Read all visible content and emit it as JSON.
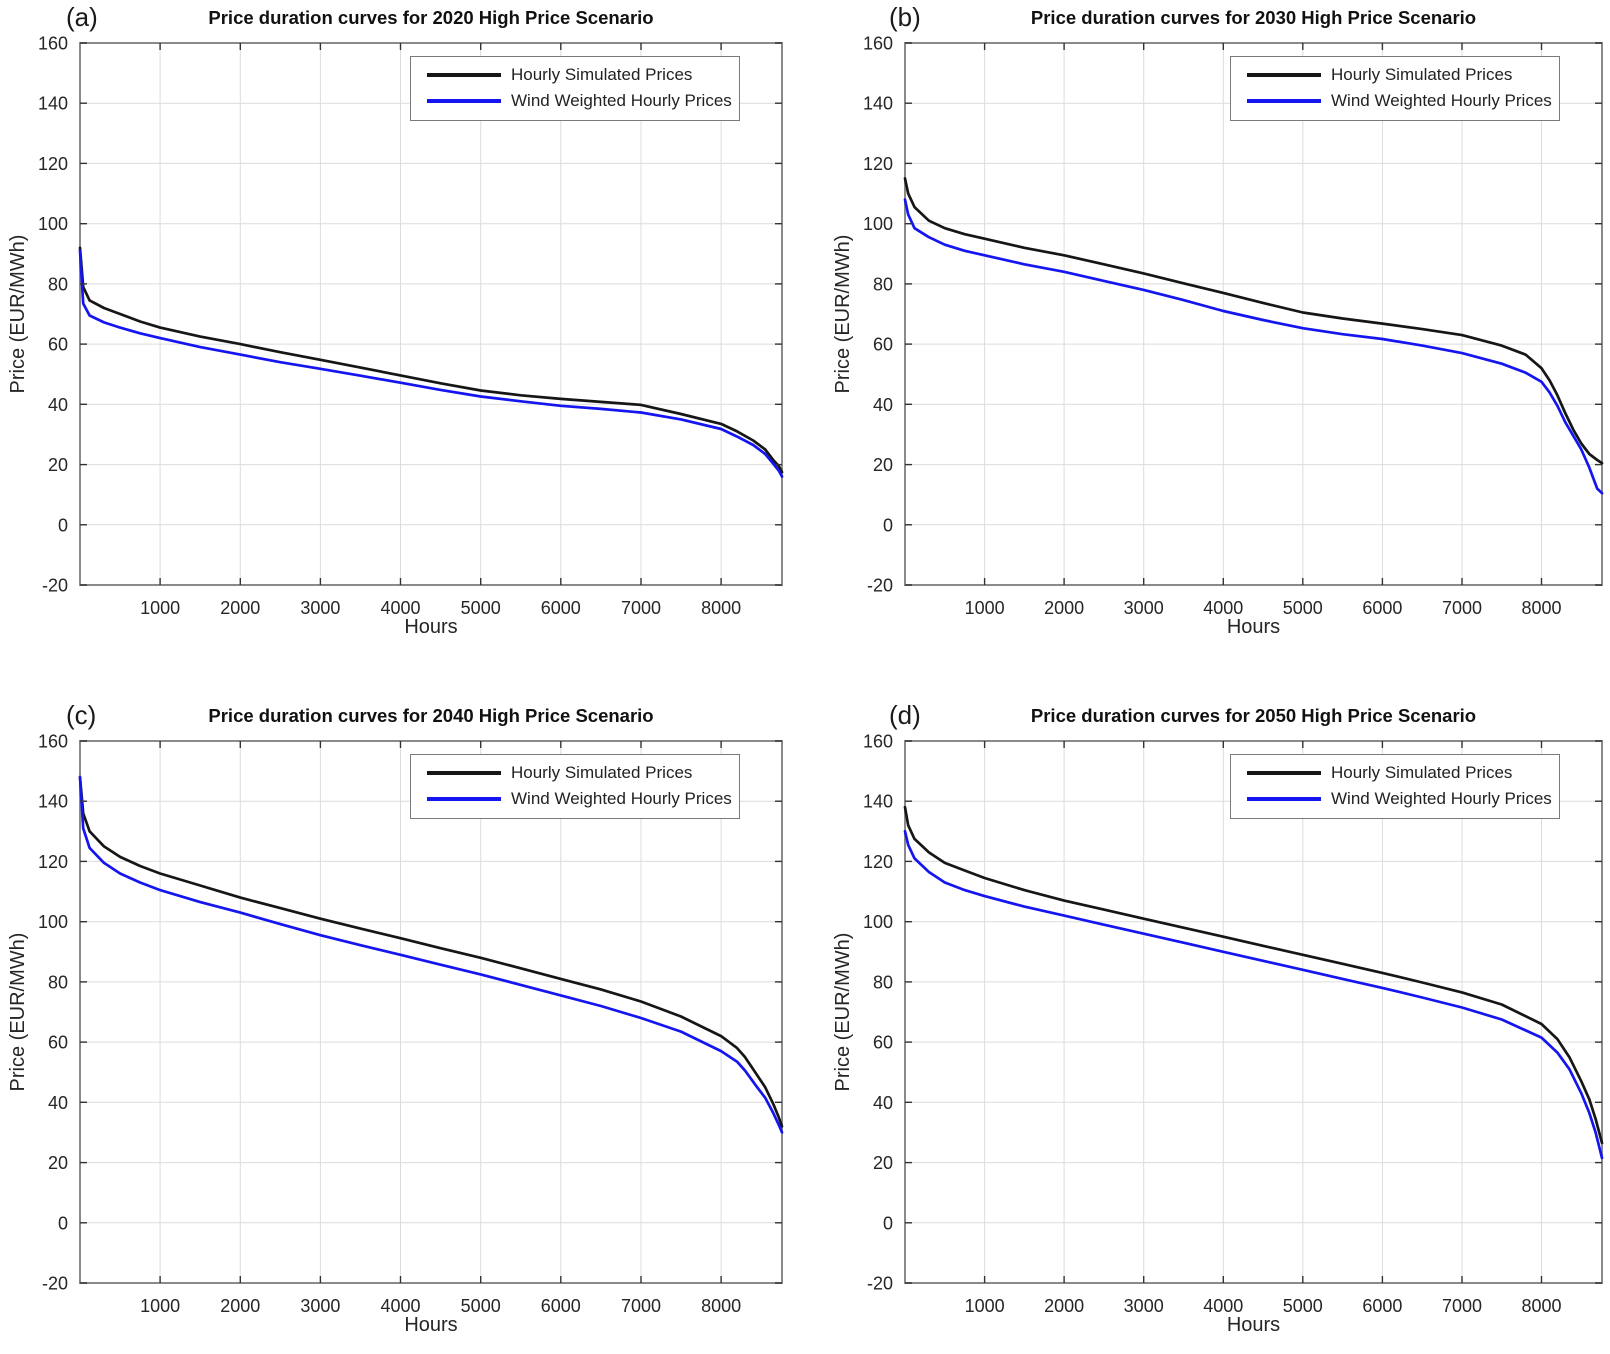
{
  "figure": {
    "background": "#ffffff",
    "axis_color": "#8a8a8a",
    "grid_color": "#dcdcdc",
    "legend": {
      "entries": [
        {
          "label": "Hourly Simulated Prices",
          "color": "#161616"
        },
        {
          "label": "Wind Weighted Hourly Prices",
          "color": "#1515f0"
        }
      ]
    }
  },
  "chart_data": [
    {
      "type": "line",
      "panel_label": "(a)",
      "title": "Price duration curves for 2020 High Price Scenario",
      "xlabel": "Hours",
      "ylabel": "Price (EUR/MWh)",
      "xlim": [
        0,
        8760
      ],
      "ylim": [
        -20,
        160
      ],
      "xticks": [
        1000,
        2000,
        3000,
        4000,
        5000,
        6000,
        7000,
        8000
      ],
      "yticks": [
        -20,
        0,
        20,
        40,
        60,
        80,
        100,
        120,
        140,
        160
      ],
      "grid": true,
      "legend_position": "top-right",
      "series": [
        {
          "name": "Hourly Simulated Prices",
          "color": "#161616",
          "x": [
            0,
            40,
            120,
            300,
            500,
            750,
            1000,
            1500,
            2000,
            2500,
            3000,
            3500,
            4000,
            4500,
            5000,
            5500,
            6000,
            6500,
            7000,
            7500,
            8000,
            8200,
            8400,
            8550,
            8650,
            8720,
            8760
          ],
          "y": [
            92,
            79,
            74.5,
            72,
            70,
            67.5,
            65.5,
            62.5,
            60,
            57.3,
            54.8,
            52.2,
            49.6,
            47,
            44.6,
            43,
            41.8,
            40.8,
            39.8,
            36.8,
            33.5,
            31,
            28,
            25,
            21.5,
            19.5,
            17.5
          ]
        },
        {
          "name": "Wind Weighted Hourly Prices",
          "color": "#1515f0",
          "x": [
            0,
            40,
            120,
            300,
            500,
            750,
            1000,
            1500,
            2000,
            2500,
            3000,
            3500,
            4000,
            4500,
            5000,
            5500,
            6000,
            6500,
            7000,
            7500,
            8000,
            8200,
            8400,
            8550,
            8650,
            8720,
            8760
          ],
          "y": [
            91,
            73.5,
            69.5,
            67.2,
            65.5,
            63.6,
            62,
            59,
            56.5,
            54,
            51.8,
            49.5,
            47.2,
            44.8,
            42.6,
            41,
            39.5,
            38.5,
            37.3,
            35,
            31.8,
            29.3,
            26.5,
            23.5,
            20.3,
            18,
            16
          ]
        }
      ]
    },
    {
      "type": "line",
      "panel_label": "(b)",
      "title": "Price duration curves for 2030 High Price Scenario",
      "xlabel": "Hours",
      "ylabel": "Price (EUR/MWh)",
      "xlim": [
        0,
        8760
      ],
      "ylim": [
        -20,
        160
      ],
      "xticks": [
        1000,
        2000,
        3000,
        4000,
        5000,
        6000,
        7000,
        8000
      ],
      "yticks": [
        -20,
        0,
        20,
        40,
        60,
        80,
        100,
        120,
        140,
        160
      ],
      "grid": true,
      "legend_position": "top-right",
      "series": [
        {
          "name": "Hourly Simulated Prices",
          "color": "#161616",
          "x": [
            0,
            40,
            120,
            300,
            500,
            750,
            1000,
            1500,
            2000,
            2500,
            3000,
            3500,
            4000,
            4500,
            5000,
            5500,
            6000,
            6500,
            7000,
            7500,
            7800,
            8000,
            8100,
            8200,
            8300,
            8400,
            8500,
            8600,
            8700,
            8760
          ],
          "y": [
            115,
            110,
            105.5,
            101,
            98.5,
            96.5,
            95,
            92,
            89.5,
            86.5,
            83.5,
            80.2,
            77,
            73.7,
            70.5,
            68.5,
            66.8,
            65,
            63,
            59.5,
            56.5,
            52,
            48,
            43,
            37,
            31.5,
            27,
            23.5,
            21.5,
            20.5
          ]
        },
        {
          "name": "Wind Weighted Hourly Prices",
          "color": "#1515f0",
          "x": [
            0,
            40,
            120,
            300,
            500,
            750,
            1000,
            1500,
            2000,
            2500,
            3000,
            3500,
            4000,
            4500,
            5000,
            5500,
            6000,
            6500,
            7000,
            7500,
            7800,
            8000,
            8100,
            8200,
            8300,
            8400,
            8500,
            8600,
            8700,
            8760
          ],
          "y": [
            108,
            103,
            98.5,
            95.5,
            93,
            91,
            89.5,
            86.5,
            84,
            81,
            78,
            74.6,
            71,
            68,
            65.3,
            63.3,
            61.7,
            59.5,
            57,
            53.5,
            50.5,
            47.5,
            44,
            39.5,
            34,
            29.5,
            25,
            19,
            12,
            10.5
          ]
        }
      ]
    },
    {
      "type": "line",
      "panel_label": "(c)",
      "title": "Price duration curves for 2040 High Price Scenario",
      "xlabel": "Hours",
      "ylabel": "Price (EUR/MWh)",
      "xlim": [
        0,
        8760
      ],
      "ylim": [
        -20,
        160
      ],
      "xticks": [
        1000,
        2000,
        3000,
        4000,
        5000,
        6000,
        7000,
        8000
      ],
      "yticks": [
        -20,
        0,
        20,
        40,
        60,
        80,
        100,
        120,
        140,
        160
      ],
      "grid": true,
      "legend_position": "top-right",
      "series": [
        {
          "name": "Hourly Simulated Prices",
          "color": "#161616",
          "x": [
            0,
            40,
            120,
            300,
            500,
            750,
            1000,
            1500,
            2000,
            2500,
            3000,
            3500,
            4000,
            4500,
            5000,
            5500,
            6000,
            6500,
            7000,
            7500,
            8000,
            8200,
            8300,
            8450,
            8550,
            8650,
            8720,
            8760
          ],
          "y": [
            148,
            136,
            130,
            125,
            121.5,
            118.5,
            116,
            112,
            108,
            104.5,
            101,
            97.7,
            94.5,
            91.2,
            88,
            84.5,
            81,
            77.5,
            73.5,
            68.5,
            62,
            58,
            55,
            49,
            45,
            39.5,
            35,
            32
          ]
        },
        {
          "name": "Wind Weighted Hourly Prices",
          "color": "#1515f0",
          "x": [
            0,
            40,
            120,
            300,
            500,
            750,
            1000,
            1500,
            2000,
            2500,
            3000,
            3500,
            4000,
            4500,
            5000,
            5500,
            6000,
            6500,
            7000,
            7500,
            8000,
            8200,
            8300,
            8450,
            8550,
            8650,
            8720,
            8760
          ],
          "y": [
            148,
            131,
            124.5,
            119.5,
            116,
            113,
            110.5,
            106.5,
            103,
            99.2,
            95.5,
            92.2,
            89,
            85.7,
            82.5,
            79,
            75.5,
            72,
            68,
            63.5,
            57,
            53.5,
            50.5,
            45,
            41.5,
            36.5,
            32.5,
            30
          ]
        }
      ]
    },
    {
      "type": "line",
      "panel_label": "(d)",
      "title": "Price duration curves for 2050 High Price Scenario",
      "xlabel": "Hours",
      "ylabel": "Price (EUR/MWh)",
      "xlim": [
        0,
        8760
      ],
      "ylim": [
        -20,
        160
      ],
      "xticks": [
        1000,
        2000,
        3000,
        4000,
        5000,
        6000,
        7000,
        8000
      ],
      "yticks": [
        -20,
        0,
        20,
        40,
        60,
        80,
        100,
        120,
        140,
        160
      ],
      "grid": true,
      "legend_position": "top-right",
      "series": [
        {
          "name": "Hourly Simulated Prices",
          "color": "#161616",
          "x": [
            0,
            40,
            120,
            300,
            500,
            750,
            1000,
            1500,
            2000,
            2500,
            3000,
            3500,
            4000,
            4500,
            5000,
            5500,
            6000,
            6500,
            7000,
            7500,
            8000,
            8200,
            8350,
            8500,
            8600,
            8680,
            8760
          ],
          "y": [
            138,
            132,
            127.5,
            123,
            119.5,
            117,
            114.5,
            110.5,
            107,
            104,
            101,
            98,
            95,
            92,
            89,
            86,
            83,
            79.8,
            76.5,
            72.5,
            66,
            61,
            55,
            47,
            41,
            34.5,
            26.5
          ]
        },
        {
          "name": "Wind Weighted Hourly Prices",
          "color": "#1515f0",
          "x": [
            0,
            40,
            120,
            300,
            500,
            750,
            1000,
            1500,
            2000,
            2500,
            3000,
            3500,
            4000,
            4500,
            5000,
            5500,
            6000,
            6500,
            7000,
            7500,
            8000,
            8200,
            8350,
            8500,
            8600,
            8680,
            8760
          ],
          "y": [
            130,
            125.5,
            121,
            116.5,
            113,
            110.5,
            108.5,
            105,
            102,
            99,
            96,
            93,
            90,
            87,
            84,
            81,
            78,
            74.8,
            71.5,
            67.5,
            61.5,
            56.5,
            51,
            43,
            36.5,
            30,
            21.5
          ]
        }
      ]
    }
  ]
}
